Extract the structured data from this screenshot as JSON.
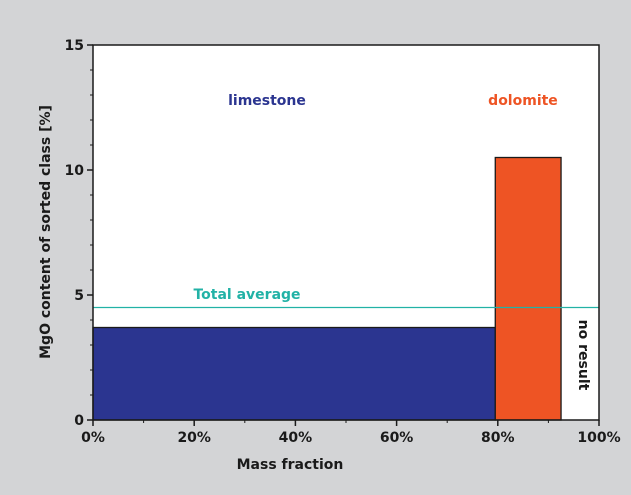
{
  "chart_data": {
    "type": "bar",
    "variable_width": true,
    "title": "",
    "xlabel": "Mass fraction",
    "ylabel": "MgO content of sorted class [%]",
    "xlim": [
      0,
      100
    ],
    "ylim": [
      0,
      15
    ],
    "xticks": [
      0,
      20,
      40,
      60,
      80,
      100
    ],
    "xtick_labels": [
      "0%",
      "20%",
      "40%",
      "60%",
      "80%",
      "100%"
    ],
    "yticks": [
      0,
      5,
      10,
      15
    ],
    "ytick_labels": [
      "0",
      "5",
      "10",
      "15"
    ],
    "grid": false,
    "bars": [
      {
        "label": "limestone",
        "x_start": 0,
        "x_end": 79.5,
        "value": 3.7,
        "color": "#2b3590"
      },
      {
        "label": "dolomite",
        "x_start": 79.5,
        "x_end": 92.5,
        "value": 10.5,
        "color": "#ee5424"
      },
      {
        "label": "no result",
        "x_start": 92.5,
        "x_end": 100,
        "value": null,
        "color": "#ffffff"
      }
    ],
    "reference_line": {
      "label": "Total average",
      "value": 4.5,
      "color": "#22b2a6"
    },
    "annotations": [
      {
        "text": "limestone",
        "color": "#2b3590"
      },
      {
        "text": "dolomite",
        "color": "#ee5424"
      },
      {
        "text": "no result",
        "color": "#1a1a1a"
      },
      {
        "text": "Total average",
        "color": "#22b2a6"
      }
    ]
  }
}
